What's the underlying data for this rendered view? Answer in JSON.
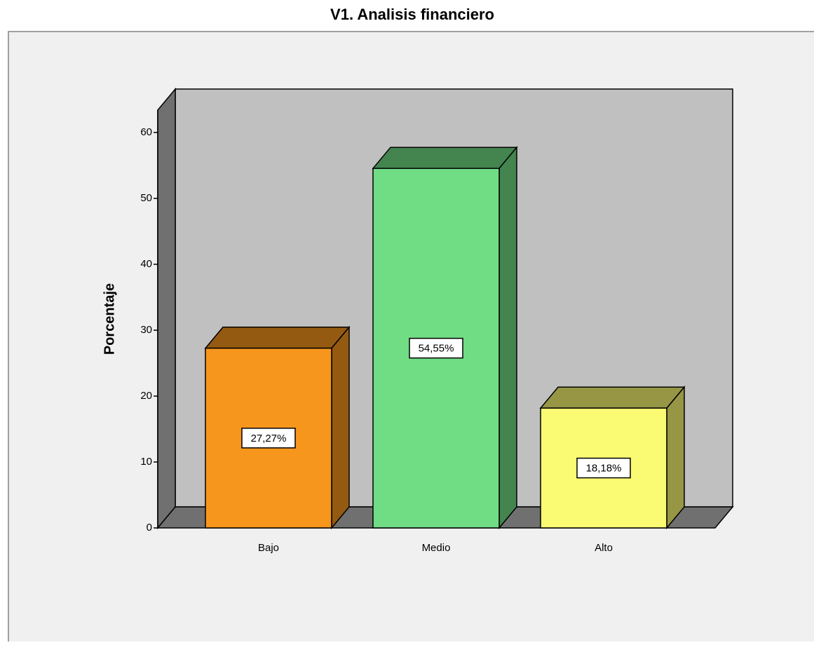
{
  "chart_data": {
    "type": "bar3d",
    "title": "V1. Analisis financiero",
    "y_label": "Porcentaje",
    "categories": [
      "Bajo",
      "Medio",
      "Alto"
    ],
    "values": [
      27.27,
      54.55,
      18.18
    ],
    "value_labels": [
      "27,27%",
      "54,55%",
      "18,18%"
    ],
    "colors": [
      "#f7961d",
      "#70dc84",
      "#fafa73"
    ],
    "ylim": [
      0,
      63.4
    ],
    "yticks": [
      0,
      10,
      20,
      30,
      40,
      50,
      60
    ]
  }
}
